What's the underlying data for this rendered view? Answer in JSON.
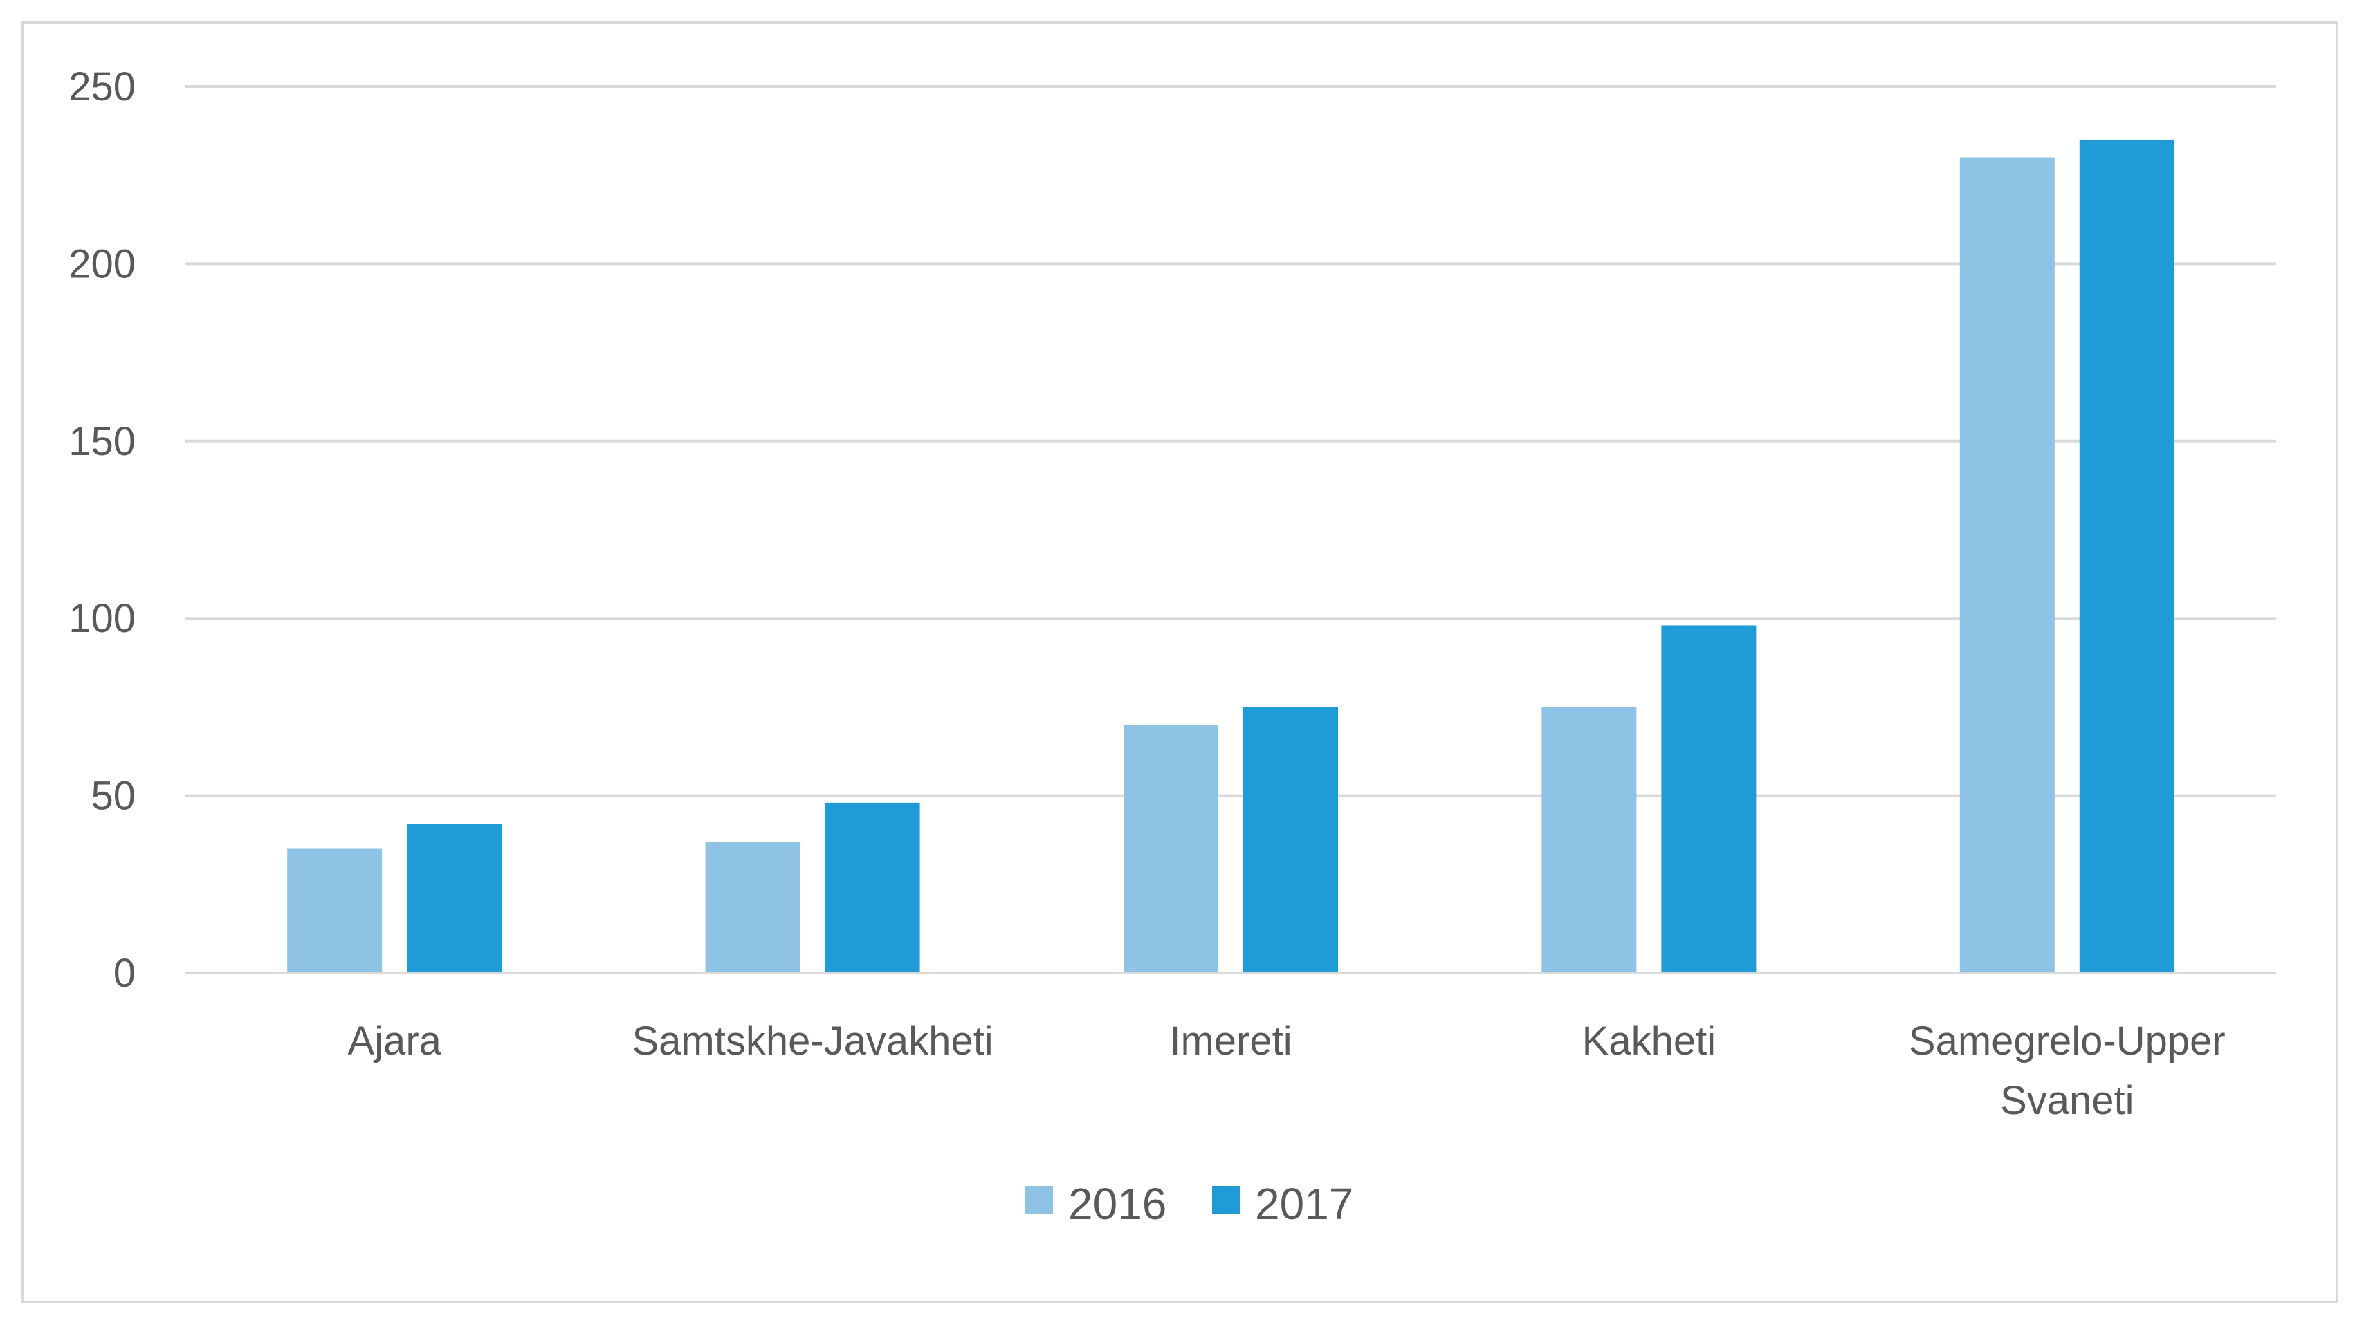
{
  "chart_data": {
    "type": "bar",
    "categories": [
      [
        "Ajara"
      ],
      [
        "Samtskhe-Javakheti"
      ],
      [
        "Imereti"
      ],
      [
        "Kakheti"
      ],
      [
        "Samegrelo-Upper",
        "Svaneti"
      ]
    ],
    "series": [
      {
        "name": "2016",
        "color": "#8fc3e6",
        "values": [
          35,
          37,
          70,
          75,
          230
        ]
      },
      {
        "name": "2017",
        "color": "#1f9bd7",
        "values": [
          42,
          48,
          75,
          98,
          235
        ]
      }
    ],
    "yticks": [
      "0",
      "50",
      "100",
      "150",
      "200",
      "250"
    ],
    "ylim": [
      0,
      250
    ],
    "grid": true,
    "legend": "bottom-center",
    "title": "",
    "xlabel": "",
    "ylabel": ""
  }
}
